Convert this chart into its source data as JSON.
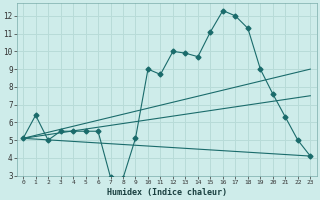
{
  "title": "",
  "xlabel": "Humidex (Indice chaleur)",
  "ylabel": "",
  "bg_color": "#ceecea",
  "grid_color": "#b8dbd8",
  "line_color": "#1a6b6b",
  "xlim": [
    -0.5,
    23.5
  ],
  "ylim": [
    3,
    12.7
  ],
  "yticks": [
    3,
    4,
    5,
    6,
    7,
    8,
    9,
    10,
    11,
    12
  ],
  "xticks": [
    0,
    1,
    2,
    3,
    4,
    5,
    6,
    7,
    8,
    9,
    10,
    11,
    12,
    13,
    14,
    15,
    16,
    17,
    18,
    19,
    20,
    21,
    22,
    23
  ],
  "series1_x": [
    0,
    1,
    2,
    3,
    4,
    5,
    6,
    7,
    8,
    9,
    10,
    11,
    12,
    13,
    14,
    15,
    16,
    17,
    18,
    19,
    20,
    21,
    22,
    23
  ],
  "series1_y": [
    5.1,
    6.4,
    5.0,
    5.5,
    5.5,
    5.5,
    5.5,
    2.9,
    2.85,
    5.1,
    9.0,
    8.7,
    10.0,
    9.9,
    9.7,
    11.1,
    12.3,
    12.0,
    11.3,
    9.0,
    7.6,
    6.3,
    5.0,
    4.1
  ],
  "series2_x": [
    0,
    23
  ],
  "series2_y": [
    5.1,
    9.0
  ],
  "series3_x": [
    0,
    23
  ],
  "series3_y": [
    5.1,
    7.5
  ],
  "series4_x": [
    0,
    23
  ],
  "series4_y": [
    5.1,
    4.1
  ]
}
